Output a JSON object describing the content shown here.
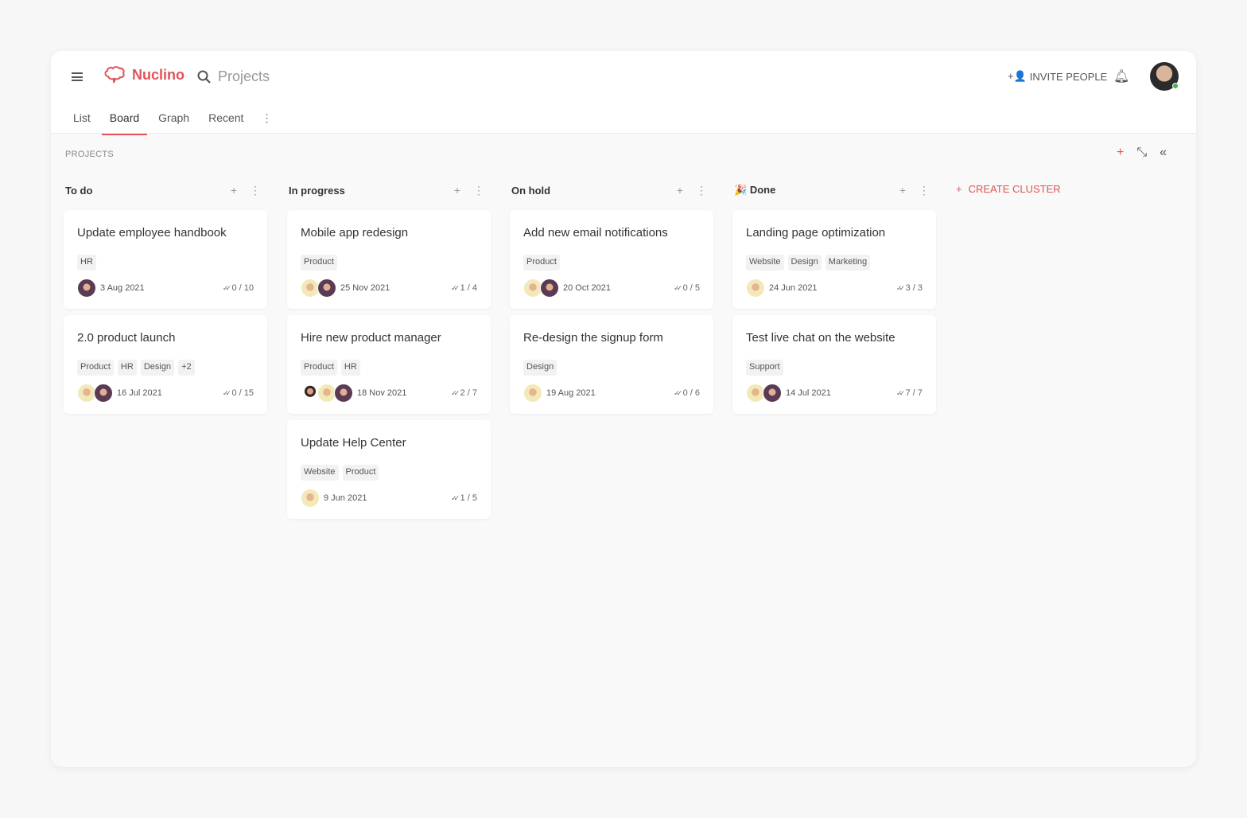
{
  "header": {
    "logo": "Nuclino",
    "search_placeholder": "Projects",
    "invite": "INVITE PEOPLE",
    "tabs": [
      "List",
      "Board",
      "Graph",
      "Recent"
    ],
    "active_tab": "Board"
  },
  "breadcrumb": "PROJECTS",
  "create_cluster": "CREATE CLUSTER",
  "accent": "#e05459",
  "columns": [
    {
      "title": "To do",
      "emoji": "",
      "cards": [
        {
          "title": "Update employee handbook",
          "tags": [
            "HR"
          ],
          "avatars": [
            "w"
          ],
          "date": "3 Aug 2021",
          "progress": "0 / 10"
        },
        {
          "title": "2.0 product launch",
          "tags": [
            "Product",
            "HR",
            "Design",
            "+2"
          ],
          "avatars": [
            "m",
            "w"
          ],
          "date": "16 Jul 2021",
          "progress": "0 / 15"
        }
      ]
    },
    {
      "title": "In progress",
      "emoji": "",
      "cards": [
        {
          "title": "Mobile app redesign",
          "tags": [
            "Product"
          ],
          "avatars": [
            "m",
            "w"
          ],
          "date": "25 Nov 2021",
          "progress": "1 / 4"
        },
        {
          "title": "Hire new product manager",
          "tags": [
            "Product",
            "HR"
          ],
          "avatars": [
            "d",
            "m",
            "w"
          ],
          "date": "18 Nov 2021",
          "progress": "2 / 7"
        },
        {
          "title": "Update Help Center",
          "tags": [
            "Website",
            "Product"
          ],
          "avatars": [
            "m"
          ],
          "date": "9 Jun 2021",
          "progress": "1 / 5"
        }
      ]
    },
    {
      "title": "On hold",
      "emoji": "",
      "cards": [
        {
          "title": "Add new email notifications",
          "tags": [
            "Product"
          ],
          "avatars": [
            "m",
            "w"
          ],
          "date": "20 Oct 2021",
          "progress": "0 / 5"
        },
        {
          "title": "Re-design the signup form",
          "tags": [
            "Design"
          ],
          "avatars": [
            "m"
          ],
          "date": "19 Aug 2021",
          "progress": "0 / 6"
        }
      ]
    },
    {
      "title": "Done",
      "emoji": "🎉",
      "cards": [
        {
          "title": "Landing page optimization",
          "tags": [
            "Website",
            "Design",
            "Marketing"
          ],
          "avatars": [
            "m"
          ],
          "date": "24 Jun 2021",
          "progress": "3 / 3"
        },
        {
          "title": "Test live chat on the website",
          "tags": [
            "Support"
          ],
          "avatars": [
            "m",
            "w"
          ],
          "date": "14 Jul 2021",
          "progress": "7 / 7"
        }
      ]
    }
  ]
}
